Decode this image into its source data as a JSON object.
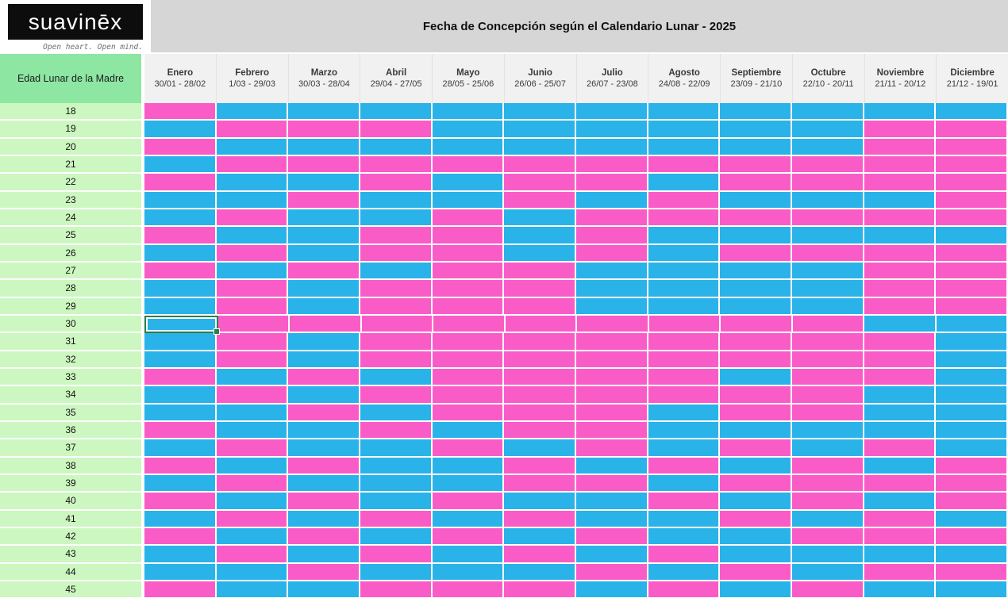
{
  "logo": {
    "brand": "suavinēx",
    "tagline": "Open heart. Open mind."
  },
  "title": "Fecha de Concepción según el Calendario Lunar - 2025",
  "table": {
    "corner_label": "Edad Lunar de la Madre",
    "months": [
      {
        "name": "Enero",
        "dates": "30/01 - 28/02"
      },
      {
        "name": "Febrero",
        "dates": "1/03 - 29/03"
      },
      {
        "name": "Marzo",
        "dates": "30/03 - 28/04"
      },
      {
        "name": "Abril",
        "dates": "29/04 - 27/05"
      },
      {
        "name": "Mayo",
        "dates": "28/05 - 25/06"
      },
      {
        "name": "Junio",
        "dates": "26/06 - 25/07"
      },
      {
        "name": "Julio",
        "dates": "26/07 - 23/08"
      },
      {
        "name": "Agosto",
        "dates": "24/08 - 22/09"
      },
      {
        "name": "Septiembre",
        "dates": "23/09 - 21/10"
      },
      {
        "name": "Octubre",
        "dates": "22/10 - 20/11"
      },
      {
        "name": "Noviembre",
        "dates": "21/11 - 20/12"
      },
      {
        "name": "Diciembre",
        "dates": "21/12 - 19/01"
      }
    ],
    "ages": [
      18,
      19,
      20,
      21,
      22,
      23,
      24,
      25,
      26,
      27,
      28,
      29,
      30,
      31,
      32,
      33,
      34,
      35,
      36,
      37,
      38,
      39,
      40,
      41,
      42,
      43,
      44,
      45
    ],
    "grid": [
      "PBBBBBBBBBBB",
      "BPPPBBBBBBPP",
      "PBBBBBBBBBPP",
      "BPPPPPPPPPPP",
      "PBBPBPPBPPPP",
      "BBPBBPBPBBBP",
      "BPBBPBPPPPPP",
      "PBBPPBPBBBBB",
      "BPBPPBPBPPPP",
      "PBPBPPBBBBPP",
      "BPBPPPBBBBPP",
      "BPBPPPBBBBPP",
      "BPPPPPPPPPBB",
      "BPBPPPPPPPPB",
      "BPBPPPPPPPPB",
      "PBPBPPPPBPPB",
      "BPBPPPPPPPBB",
      "BBPBPPPBPPBB",
      "PBBPBPPBBBBB",
      "BPBBPBPBPBPB",
      "PBPBBPBPBPBP",
      "BPBBBPPBPPPP",
      "PBPBPBBPBPBP",
      "BPBPBPBBPBPB",
      "PBPBPBPBBPPP",
      "BPBPBPBPBBBB",
      "BBPBBBPBPBPP",
      "PBBPPPBPBPBB"
    ],
    "selected": {
      "age": 30,
      "month_index": 0
    }
  },
  "colors": {
    "pink": "#fa5cc7",
    "blue": "#29b3e9",
    "corner_green": "#8de6a2",
    "age_green": "#cdf7c0",
    "title_gray": "#d6d6d6",
    "month_header_gray": "#f1f1f1",
    "selection_green": "#2e7d4a"
  },
  "chart_data": {
    "type": "heatmap",
    "title": "Fecha de Concepción según el Calendario Lunar - 2025",
    "x_labels": [
      "Enero",
      "Febrero",
      "Marzo",
      "Abril",
      "Mayo",
      "Junio",
      "Julio",
      "Agosto",
      "Septiembre",
      "Octubre",
      "Noviembre",
      "Diciembre"
    ],
    "y_labels": [
      18,
      19,
      20,
      21,
      22,
      23,
      24,
      25,
      26,
      27,
      28,
      29,
      30,
      31,
      32,
      33,
      34,
      35,
      36,
      37,
      38,
      39,
      40,
      41,
      42,
      43,
      44,
      45
    ],
    "ylabel": "Edad Lunar de la Madre",
    "cell_values": "see table.grid — P = pink cell (#fa5cc7), B = blue cell (#29b3e9)"
  }
}
